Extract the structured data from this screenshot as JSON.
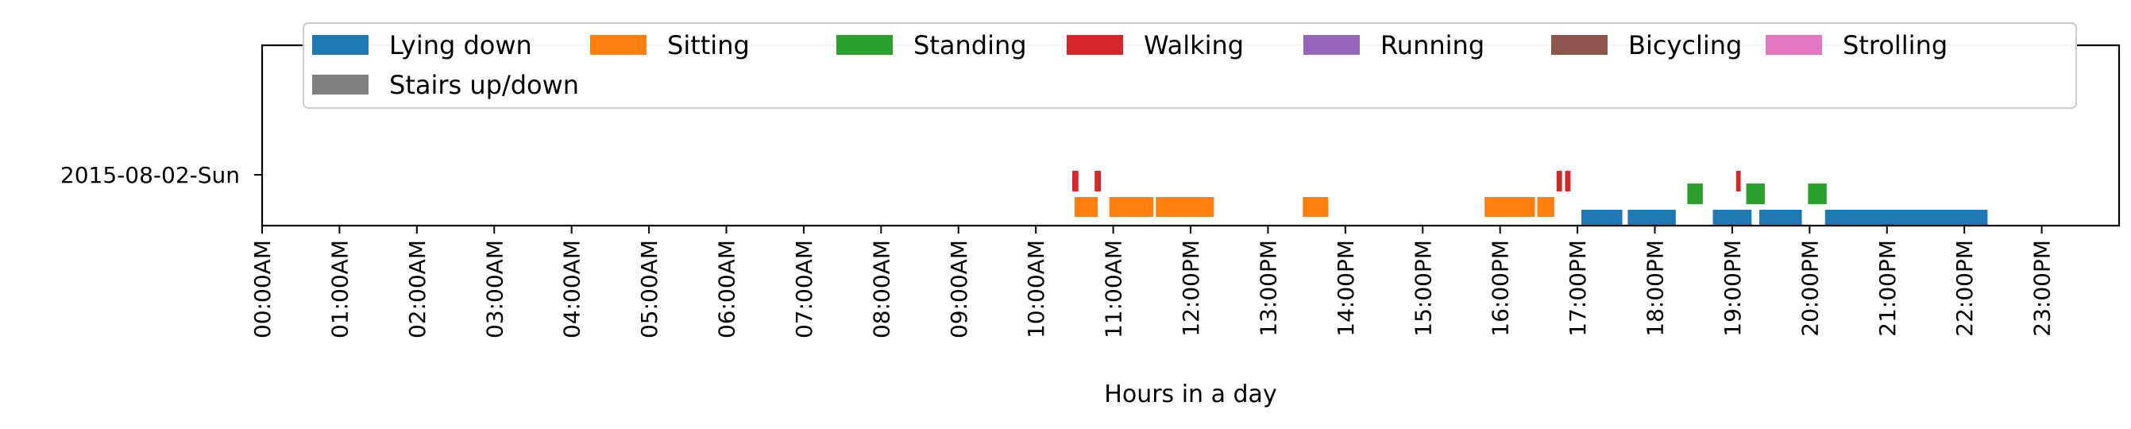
{
  "chart_data": {
    "type": "timeline",
    "xlabel": "Hours in a day",
    "xlim": [
      0,
      24
    ],
    "x_unit": "hours",
    "y_categories": [
      "2015-08-02-Sun"
    ],
    "x_tick_labels": [
      "00:00AM",
      "01:00AM",
      "02:00AM",
      "03:00AM",
      "04:00AM",
      "05:00AM",
      "06:00AM",
      "07:00AM",
      "08:00AM",
      "09:00AM",
      "10:00AM",
      "11:00AM",
      "12:00PM",
      "13:00PM",
      "14:00PM",
      "15:00PM",
      "16:00PM",
      "17:00PM",
      "18:00PM",
      "19:00PM",
      "20:00PM",
      "21:00PM",
      "22:00PM",
      "23:00PM"
    ],
    "legend_position": "top",
    "grid": false,
    "series": [
      {
        "name": "Lying down",
        "color": "#1f77b4",
        "segments": [
          [
            17.05,
            17.58
          ],
          [
            17.65,
            18.27
          ],
          [
            18.75,
            19.25
          ],
          [
            19.35,
            19.9
          ],
          [
            20.2,
            22.3
          ]
        ]
      },
      {
        "name": "Sitting",
        "color": "#ff7f0e",
        "segments": [
          [
            10.5,
            10.8
          ],
          [
            10.95,
            11.52
          ],
          [
            11.55,
            12.3
          ],
          [
            13.45,
            13.78
          ],
          [
            15.8,
            16.45
          ],
          [
            16.48,
            16.7
          ]
        ]
      },
      {
        "name": "Standing",
        "color": "#2ca02c",
        "segments": [
          [
            18.42,
            18.62
          ],
          [
            19.18,
            19.42
          ],
          [
            19.98,
            20.22
          ]
        ]
      },
      {
        "name": "Walking",
        "color": "#d62728",
        "segments": [
          [
            10.47,
            10.55
          ],
          [
            10.76,
            10.84
          ],
          [
            16.73,
            16.8
          ],
          [
            16.84,
            16.91
          ],
          [
            19.05,
            19.11
          ]
        ]
      },
      {
        "name": "Running",
        "color": "#9467bd",
        "segments": []
      },
      {
        "name": "Bicycling",
        "color": "#8c564b",
        "segments": []
      },
      {
        "name": "Strolling",
        "color": "#e377c2",
        "segments": []
      },
      {
        "name": "Stairs up/down",
        "color": "#7f7f7f",
        "segments": []
      }
    ]
  }
}
